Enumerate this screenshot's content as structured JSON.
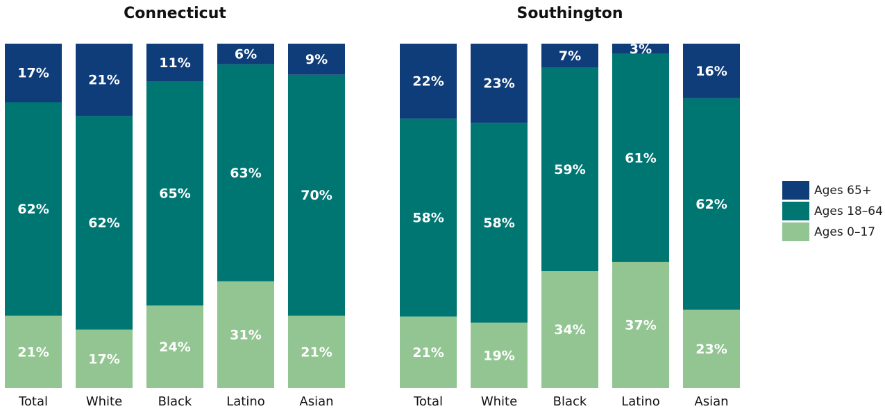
{
  "chart_data": [
    {
      "type": "bar",
      "stacked": true,
      "title": "Connecticut",
      "categories": [
        "Total",
        "White",
        "Black",
        "Latino",
        "Asian"
      ],
      "series": [
        {
          "name": "Ages 0–17",
          "color": "#92c591",
          "values": [
            21,
            17,
            24,
            31,
            21
          ]
        },
        {
          "name": "Ages 18–64",
          "color": "#007672",
          "values": [
            62,
            62,
            65,
            63,
            70
          ]
        },
        {
          "name": "Ages 65+",
          "color": "#0f3d7a",
          "values": [
            17,
            21,
            11,
            6,
            9
          ]
        }
      ],
      "value_labels": [
        [
          "21%",
          "17%",
          "24%",
          "31%",
          "21%"
        ],
        [
          "62%",
          "62%",
          "65%",
          "63%",
          "70%"
        ],
        [
          "17%",
          "21%",
          "11%",
          "6%",
          "9%"
        ]
      ],
      "legend": "right"
    },
    {
      "type": "bar",
      "stacked": true,
      "title": "Southington",
      "categories": [
        "Total",
        "White",
        "Black",
        "Latino",
        "Asian"
      ],
      "series": [
        {
          "name": "Ages 0–17",
          "color": "#92c591",
          "values": [
            21,
            19,
            34,
            37,
            23
          ]
        },
        {
          "name": "Ages 18–64",
          "color": "#007672",
          "values": [
            58,
            58,
            59,
            61,
            62
          ]
        },
        {
          "name": "Ages 65+",
          "color": "#0f3d7a",
          "values": [
            22,
            23,
            7,
            3,
            16
          ]
        }
      ],
      "value_labels": [
        [
          "21%",
          "19%",
          "34%",
          "37%",
          "23%"
        ],
        [
          "58%",
          "58%",
          "59%",
          "61%",
          "62%"
        ],
        [
          "22%",
          "23%",
          "7%",
          "3%",
          "16%"
        ]
      ],
      "legend": "right"
    }
  ]
}
